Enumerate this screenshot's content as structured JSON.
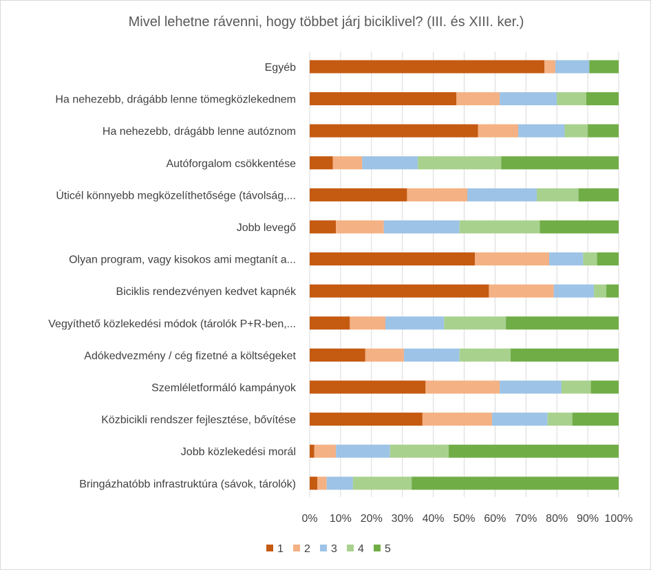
{
  "chart_data": {
    "type": "bar",
    "orientation": "horizontal",
    "stacked": "percent",
    "title": "Mivel lehetne rávenni, hogy többet járj biciklivel? (III. és XIII. ker.)",
    "xlabel": "",
    "ylabel": "",
    "xlim": [
      0,
      100
    ],
    "x_ticks": [
      "0%",
      "10%",
      "20%",
      "30%",
      "40%",
      "50%",
      "60%",
      "70%",
      "80%",
      "90%",
      "100%"
    ],
    "grid": "vertical",
    "legend_position": "bottom",
    "categories": [
      "Egyéb",
      "Ha nehezebb, drágább lenne tömegközlekednem",
      "Ha nehezebb, drágább lenne autóznom",
      "Autóforgalom csökkentése",
      "Úticél könnyebb megközelíthetősége (távolság,...",
      "Jobb levegő",
      "Olyan program, vagy kisokos ami megtanít a...",
      "Biciklis rendezvényen kedvet kapnék",
      "Vegyíthető közlekedési módok (tárolók P+R-ben,...",
      "Adókedvezmény / cég fizetné a költségeket",
      "Szemléletformáló kampányok",
      "Közbicikli rendszer fejlesztése, bővítése",
      "Jobb közlekedési morál",
      "Bringázhatóbb infrastruktúra (sávok, tárolók)"
    ],
    "series": [
      {
        "name": "1",
        "color": "#c55a11",
        "values": [
          76,
          47.5,
          54.5,
          7.5,
          31.5,
          8.5,
          53.5,
          58,
          13,
          18,
          37.5,
          36.5,
          1.5,
          2.5
        ]
      },
      {
        "name": "2",
        "color": "#f4b183",
        "values": [
          3.5,
          14,
          13,
          9.5,
          19.5,
          15.5,
          24,
          21,
          11.5,
          12.5,
          24,
          22.5,
          7,
          3
        ]
      },
      {
        "name": "3",
        "color": "#9dc3e6",
        "values": [
          11,
          18.5,
          15,
          18,
          22.5,
          24.5,
          11,
          13,
          19,
          18,
          20,
          18,
          17.5,
          8.5
        ]
      },
      {
        "name": "4",
        "color": "#a9d18e",
        "values": [
          0,
          9.5,
          7.5,
          27,
          13.5,
          26,
          4.5,
          4,
          20,
          16.5,
          9.5,
          8,
          19,
          19
        ]
      },
      {
        "name": "5",
        "color": "#70ad47",
        "values": [
          9.5,
          10.5,
          10,
          38,
          13,
          25.5,
          7,
          4,
          36.5,
          35,
          9,
          15,
          55,
          67
        ]
      }
    ]
  }
}
